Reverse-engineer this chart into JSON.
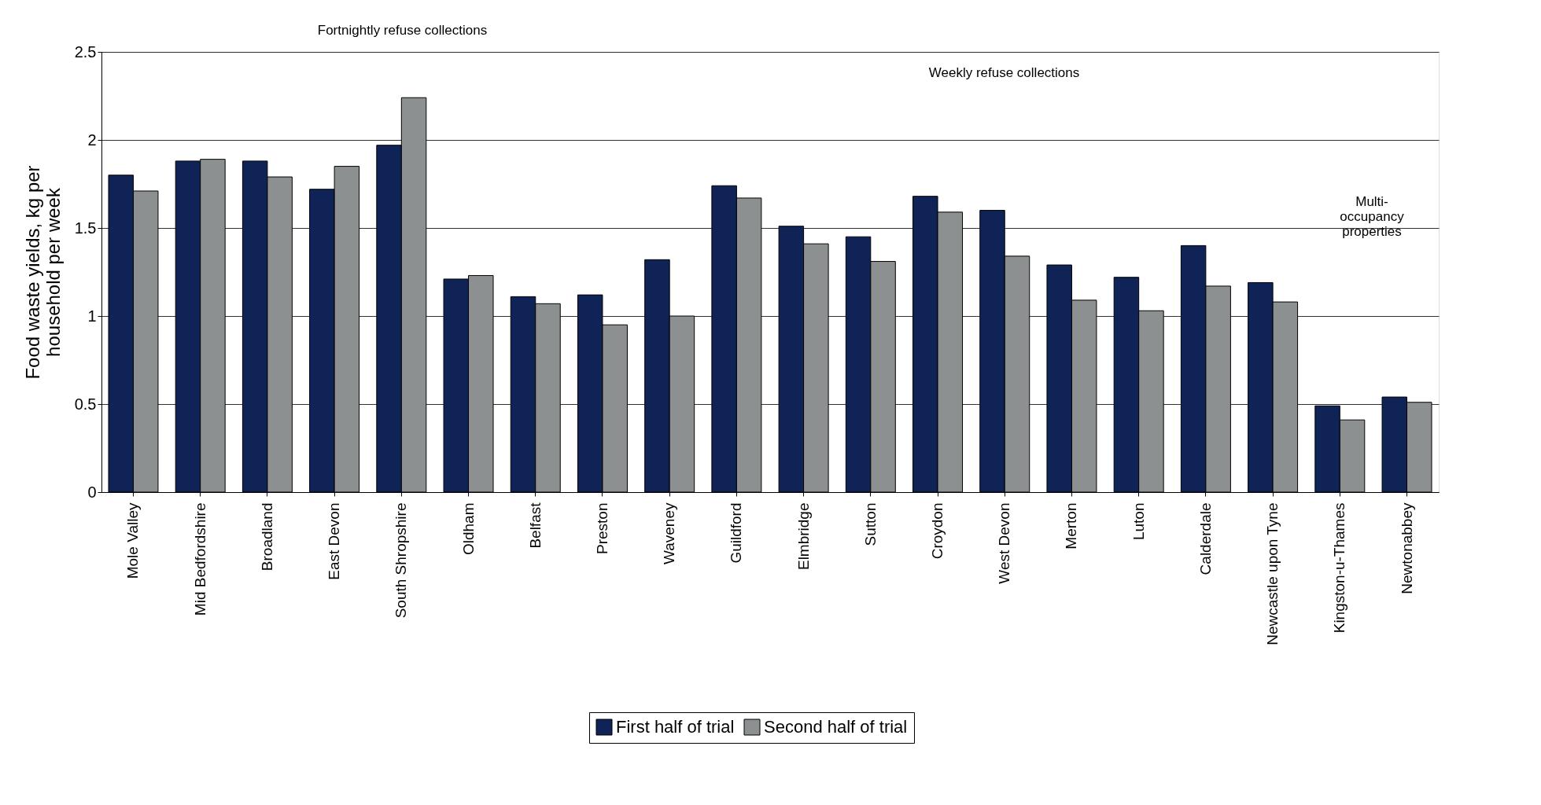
{
  "chart_data": {
    "type": "bar",
    "categories": [
      "Mole Valley",
      "Mid Bedfordshire",
      "Broadland",
      "East Devon",
      "South Shropshire",
      "Oldham",
      "Belfast",
      "Preston",
      "Waveney",
      "Guildford",
      "Elmbridge",
      "Sutton",
      "Croydon",
      "West Devon",
      "Merton",
      "Luton",
      "Calderdale",
      "Newcastle upon Tyne",
      "Kingston-u-Thames",
      "Newtonabbey"
    ],
    "series": [
      {
        "name": "First half of trial",
        "color": "#0f2356",
        "values": [
          1.8,
          1.88,
          1.88,
          1.72,
          1.97,
          1.21,
          1.11,
          1.12,
          1.32,
          1.74,
          1.51,
          1.45,
          1.68,
          1.6,
          1.29,
          1.22,
          1.4,
          1.19,
          0.49,
          0.54
        ]
      },
      {
        "name": "Second half of trial",
        "color": "#8c9090",
        "values": [
          1.71,
          1.89,
          1.79,
          1.85,
          2.24,
          1.23,
          1.07,
          0.95,
          1.0,
          1.67,
          1.41,
          1.31,
          1.59,
          1.34,
          1.09,
          1.03,
          1.17,
          1.08,
          0.41,
          0.51
        ]
      }
    ],
    "ylabel": "Food waste yields, kg per household per week",
    "ylim": [
      0,
      2.5
    ],
    "yticks": [
      0,
      0.5,
      1,
      1.5,
      2,
      2.5
    ],
    "grid": "y",
    "legend": "bottom",
    "annotations": [
      "Fortnightly refuse collections",
      "Weekly refuse collections",
      "Multi-occupancy properties"
    ]
  }
}
